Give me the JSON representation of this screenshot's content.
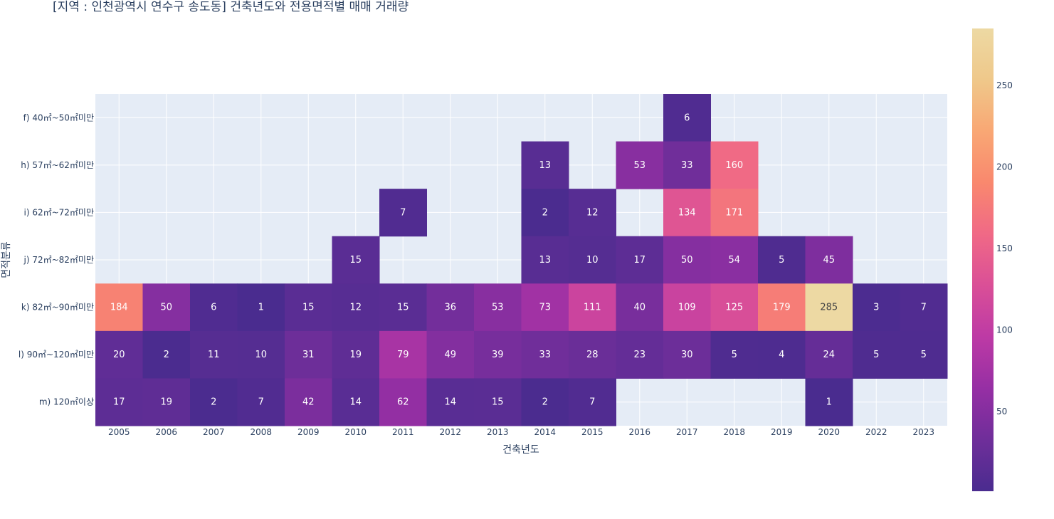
{
  "chart_data": {
    "type": "heatmap",
    "title": "[지역 : 인천광역시 연수구 송도동] 건축년도와 전용면적별 매매 거래량",
    "xlabel": "건축년도",
    "ylabel": "면적분류",
    "x": [
      "2005",
      "2006",
      "2007",
      "2008",
      "2009",
      "2010",
      "2011",
      "2012",
      "2013",
      "2014",
      "2015",
      "2016",
      "2017",
      "2018",
      "2019",
      "2020",
      "2022",
      "2023"
    ],
    "y": [
      "f) 40㎡~50㎡미만",
      "h) 57㎡~62㎡미만",
      "i) 62㎡~72㎡미만",
      "j) 72㎡~82㎡미만",
      "k) 82㎡~90㎡미만",
      "l) 90㎡~120㎡미만",
      "m) 120㎡이상"
    ],
    "z": [
      [
        null,
        null,
        null,
        null,
        null,
        null,
        null,
        null,
        null,
        null,
        null,
        null,
        6,
        null,
        null,
        null,
        null,
        null
      ],
      [
        null,
        null,
        null,
        null,
        null,
        null,
        null,
        null,
        null,
        13,
        null,
        53,
        33,
        160,
        null,
        null,
        null,
        null
      ],
      [
        null,
        null,
        null,
        null,
        null,
        null,
        7,
        null,
        null,
        2,
        12,
        null,
        134,
        171,
        null,
        null,
        null,
        null
      ],
      [
        null,
        null,
        null,
        null,
        null,
        15,
        null,
        null,
        null,
        13,
        10,
        17,
        50,
        54,
        5,
        45,
        null,
        null
      ],
      [
        184,
        50,
        6,
        1,
        15,
        12,
        15,
        36,
        53,
        73,
        111,
        40,
        109,
        125,
        179,
        285,
        3,
        7
      ],
      [
        20,
        2,
        11,
        10,
        31,
        19,
        79,
        49,
        39,
        33,
        28,
        23,
        30,
        5,
        4,
        24,
        5,
        5
      ],
      [
        17,
        19,
        2,
        7,
        42,
        14,
        62,
        14,
        15,
        2,
        7,
        null,
        null,
        null,
        null,
        1,
        null,
        null
      ]
    ],
    "zrange": [
      1,
      285
    ],
    "colorscale": [
      "#4a2c8f",
      "#6f2e9a",
      "#962fa4",
      "#bd3aa5",
      "#da4f97",
      "#f06986",
      "#f9886e",
      "#f9a774",
      "#efc88a",
      "#edd9a3"
    ],
    "colorbar_ticks": [
      50,
      100,
      150,
      200,
      250
    ]
  }
}
